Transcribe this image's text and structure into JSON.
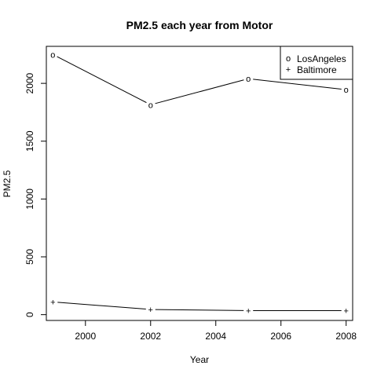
{
  "chart_data": {
    "type": "line",
    "title": "PM2.5 each year from Motor",
    "xlabel": "Year",
    "ylabel": "PM2.5",
    "x": [
      1999,
      2002,
      2005,
      2008
    ],
    "xlim": [
      1998.8,
      2008.2
    ],
    "ylim": [
      -50,
      2320
    ],
    "xticks": [
      2000,
      2002,
      2004,
      2006,
      2008
    ],
    "yticks": [
      0,
      500,
      1000,
      1500,
      2000
    ],
    "series": [
      {
        "name": "LosAngeles",
        "marker": "o",
        "values": [
          2250,
          1815,
          2040,
          1945
        ]
      },
      {
        "name": "Baltimore",
        "marker": "+",
        "values": [
          110,
          45,
          35,
          35
        ]
      }
    ],
    "legend_position": "top-right",
    "grid": false
  }
}
